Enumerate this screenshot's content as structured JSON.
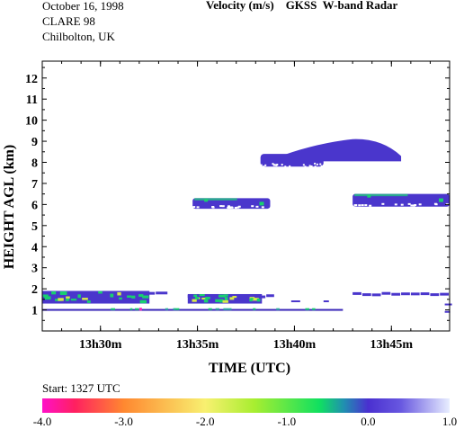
{
  "header": {
    "date": "October  16, 1998",
    "campaign": "CLARE 98",
    "site": "Chilbolton, UK",
    "title": "Velocity (m/s)    GKSS  W-band Radar"
  },
  "footer": {
    "start": "Start: 1327 UTC"
  },
  "colorbar": {
    "ticks": [
      "-4.0",
      "-3.0",
      "-2.0",
      "-1.0",
      "0.0",
      "1.0"
    ],
    "range": [
      -4.0,
      1.0
    ],
    "stops": [
      {
        "v": -4.0,
        "c": "#ff10c8"
      },
      {
        "v": -3.6,
        "c": "#ff2060"
      },
      {
        "v": -3.0,
        "c": "#ff8830"
      },
      {
        "v": -2.0,
        "c": "#f8f070"
      },
      {
        "v": -1.4,
        "c": "#a8ee30"
      },
      {
        "v": -0.6,
        "c": "#10e060"
      },
      {
        "v": -0.3,
        "c": "#2090b0"
      },
      {
        "v": 0.0,
        "c": "#4a30d0"
      },
      {
        "v": 0.4,
        "c": "#6858e0"
      },
      {
        "v": 1.0,
        "c": "#e8eeff"
      }
    ]
  },
  "chart_data": {
    "type": "heatmap",
    "title": "Velocity (m/s)    GKSS  W-band Radar",
    "xlabel": "TIME (UTC)",
    "ylabel": "HEIGHT AGL (km)",
    "xlim": [
      "13h27m",
      "13h48m"
    ],
    "ylim": [
      0,
      12.8
    ],
    "x_ticks": [
      "13h30m",
      "13h35m",
      "13h40m",
      "13h45m"
    ],
    "y_ticks": [
      "1",
      "2",
      "3",
      "4",
      "5",
      "6",
      "7",
      "8",
      "9",
      "10",
      "11",
      "12"
    ],
    "grid": false,
    "colors": {
      "cloud": "#4a36cc",
      "cloud_dark": "#3a28b8",
      "green": "#18d070",
      "yellow": "#d8e848",
      "magenta": "#ff20c0"
    },
    "layers": [
      {
        "name": "low cloud layer near 1.5 km",
        "t_start": "13h27m",
        "t_end": "13h33m30s",
        "base_km": 1.3,
        "top_km": 1.9,
        "velocity_ms": [
          -1.2,
          0.3
        ]
      },
      {
        "name": "low cloud layer near 1.5 km",
        "t_start": "13h34m30s",
        "t_end": "13h39m",
        "base_km": 1.3,
        "top_km": 1.75,
        "velocity_ms": [
          -1.0,
          0.3
        ]
      },
      {
        "name": "low cloud layer near 1.8 km",
        "t_start": "13h43m",
        "t_end": "13h48m",
        "base_km": 1.6,
        "top_km": 1.85,
        "velocity_ms": [
          0.0,
          0.3
        ]
      },
      {
        "name": "layer near 1.0 km",
        "t_start": "13h27m",
        "t_end": "13h42m30s",
        "base_km": 0.85,
        "top_km": 1.15,
        "velocity_ms": [
          -1.5,
          0.3
        ]
      },
      {
        "name": "mid cloud near 6 km",
        "t_start": "13h34m45s",
        "t_end": "13h38m45s",
        "base_km": 5.8,
        "top_km": 6.3,
        "velocity_ms": [
          -0.8,
          0.3
        ]
      },
      {
        "name": "mid cloud near 6.2 km",
        "t_start": "13h43m",
        "t_end": "13h48m",
        "base_km": 5.9,
        "top_km": 6.5,
        "velocity_ms": [
          -0.6,
          0.3
        ]
      },
      {
        "name": "upper cloud near 8.5 km",
        "t_start": "13h38m15s",
        "t_end": "13h45m30s",
        "base_km": 7.8,
        "top_km": 9.3,
        "velocity_ms": [
          0.0,
          0.4
        ]
      }
    ]
  }
}
